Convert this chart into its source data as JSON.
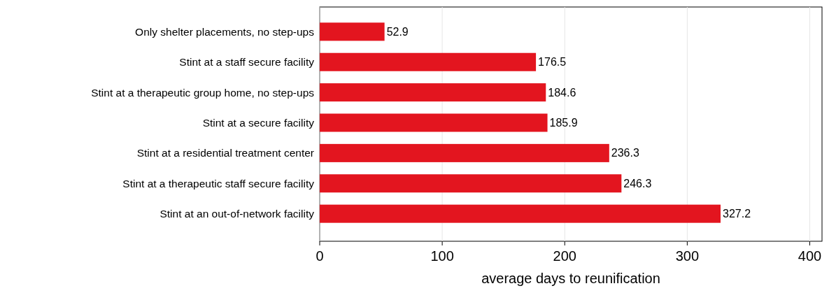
{
  "chart_data": {
    "type": "bar",
    "orientation": "horizontal",
    "xlabel": "average days to reunification",
    "categories": [
      "Only shelter placements, no step-ups",
      "Stint at a staff secure facility",
      "Stint at a therapeutic group home, no step-ups",
      "Stint at a secure facility",
      "Stint at a residential treatment center",
      "Stint at a therapeutic staff secure facility",
      "Stint at an out-of-network facility"
    ],
    "values": [
      52.9,
      176.5,
      184.6,
      185.9,
      236.3,
      246.3,
      327.2
    ],
    "color": "#e3151f",
    "xlim": [
      0,
      410
    ],
    "xticks": [
      0,
      100,
      200,
      300,
      400
    ],
    "grid": "x",
    "data_labels": true
  }
}
